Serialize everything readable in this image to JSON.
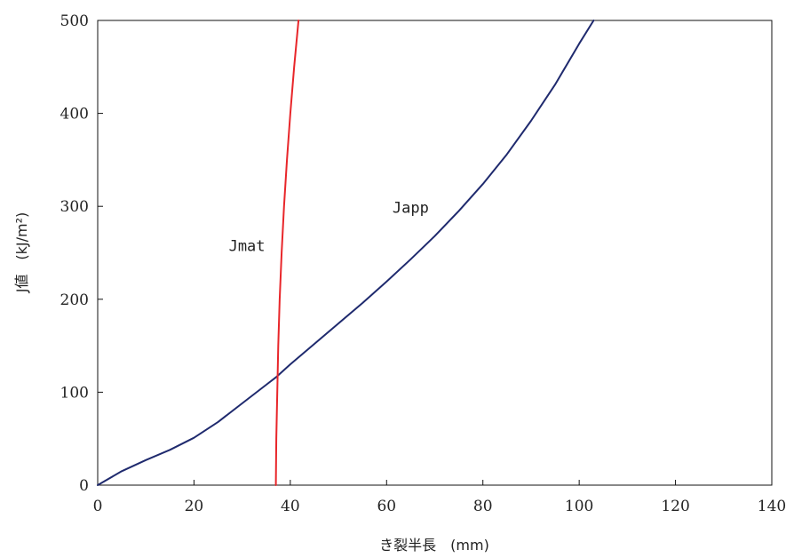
{
  "chart_data": {
    "type": "line",
    "title": "",
    "xlabel": "き裂半長　(mm)",
    "ylabel": "J値　(kJ/m²)",
    "xlim": [
      0,
      140
    ],
    "ylim": [
      0,
      500
    ],
    "x_ticks": [
      0,
      20,
      40,
      60,
      80,
      100,
      120,
      140
    ],
    "y_ticks": [
      0,
      100,
      200,
      300,
      400,
      500
    ],
    "grid": false,
    "legend": "none",
    "series": [
      {
        "name": "Japp",
        "color": "#1f2a6e",
        "points": [
          [
            0,
            0
          ],
          [
            5,
            15
          ],
          [
            10,
            27
          ],
          [
            15,
            38
          ],
          [
            20,
            51
          ],
          [
            25,
            68
          ],
          [
            30,
            88
          ],
          [
            35,
            108
          ],
          [
            37,
            116
          ],
          [
            40,
            130
          ],
          [
            45,
            152
          ],
          [
            50,
            174
          ],
          [
            55,
            196
          ],
          [
            60,
            219
          ],
          [
            65,
            243
          ],
          [
            70,
            268
          ],
          [
            75,
            295
          ],
          [
            80,
            324
          ],
          [
            85,
            356
          ],
          [
            90,
            392
          ],
          [
            95,
            431
          ],
          [
            100,
            475
          ],
          [
            103,
            500
          ]
        ]
      },
      {
        "name": "Jmat",
        "color": "#e8262a",
        "points": [
          [
            37,
            0
          ],
          [
            37.1,
            50
          ],
          [
            37.3,
            100
          ],
          [
            37.5,
            150
          ],
          [
            37.8,
            200
          ],
          [
            38.2,
            250
          ],
          [
            38.7,
            300
          ],
          [
            39.3,
            350
          ],
          [
            40,
            400
          ],
          [
            40.8,
            450
          ],
          [
            41.7,
            500
          ]
        ]
      }
    ],
    "annotations": [
      {
        "text": "Japp",
        "x": 65,
        "y": 293
      },
      {
        "text": "Jmat",
        "x": 31,
        "y": 252
      }
    ]
  }
}
